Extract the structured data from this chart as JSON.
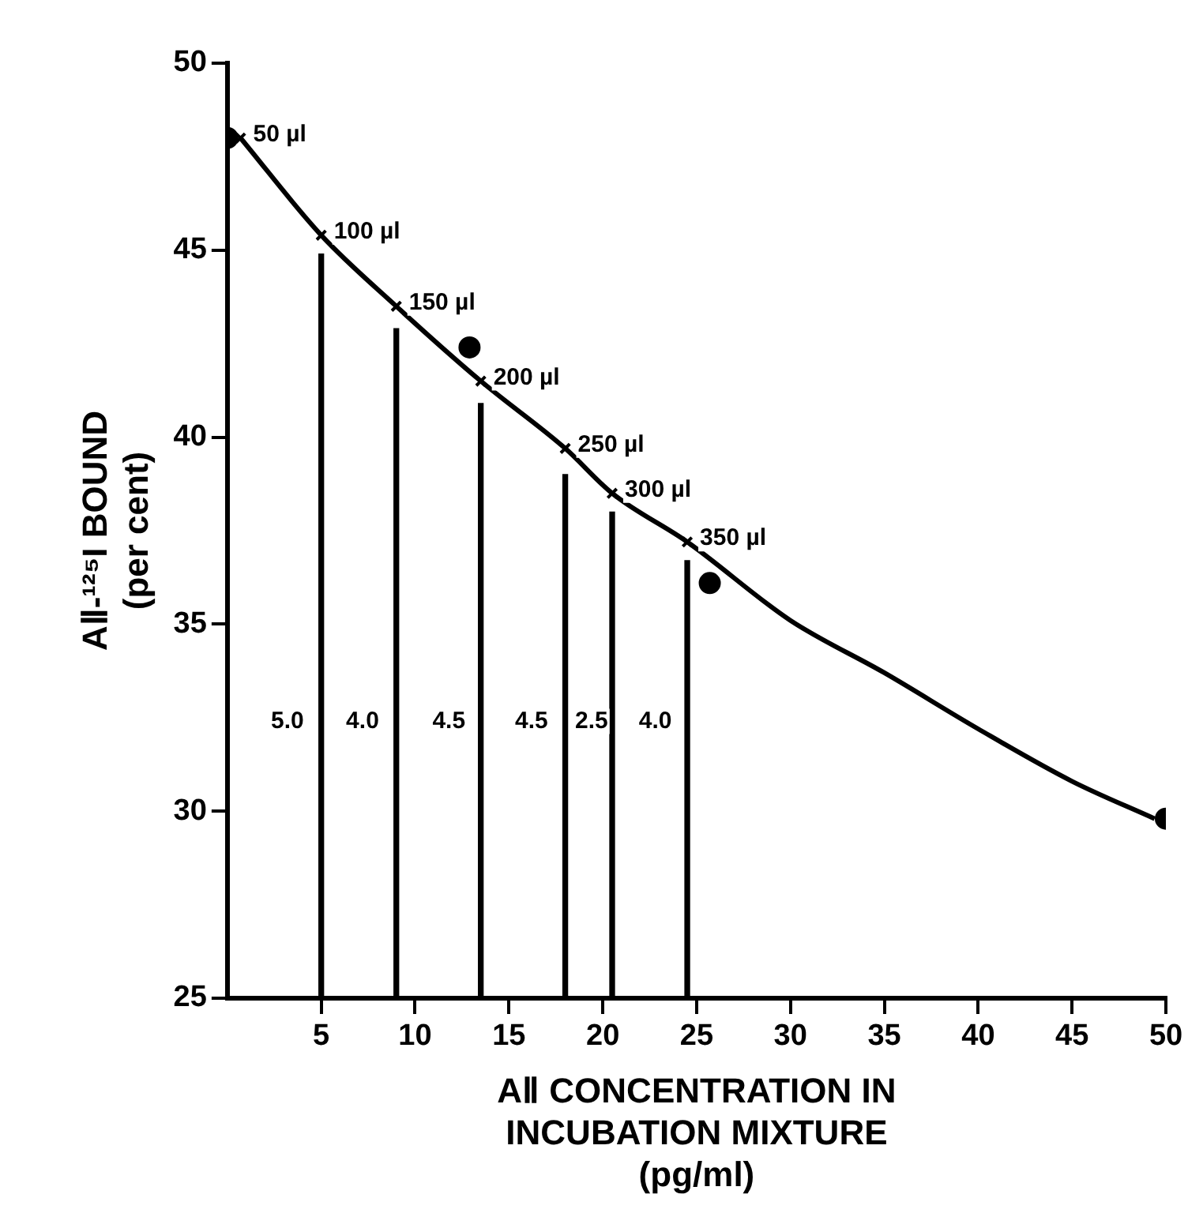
{
  "chart_data": {
    "type": "line",
    "xlabel": "AⅡ CONCENTRATION IN\nINCUBATION MIXTURE\n(pg/ml)",
    "ylabel": "AⅡ-¹²⁵I BOUND\n(per cent)",
    "xlim": [
      0,
      50
    ],
    "xticks": [
      5,
      10,
      15,
      20,
      25,
      30,
      35,
      40,
      45,
      50
    ],
    "ylim": [
      25,
      50
    ],
    "yticks": [
      25,
      30,
      35,
      40,
      45,
      50
    ],
    "grid": false,
    "legend": false,
    "series": [
      {
        "type": "bar",
        "color": "#000000",
        "x": [
          5,
          9,
          13.5,
          18,
          20.5,
          24.5
        ],
        "values": [
          44.9,
          42.9,
          40.9,
          39.0,
          38.0,
          36.7
        ]
      },
      {
        "color": "#000000",
        "marker": "none",
        "line_style": "solid",
        "x": [
          0.7,
          5,
          9,
          13.5,
          18,
          20.5,
          24.5,
          30,
          35,
          40,
          45,
          49.4
        ],
        "values": [
          48.0,
          45.4,
          43.5,
          41.5,
          39.7,
          38.5,
          37.2,
          35.1,
          33.7,
          32.2,
          30.8,
          29.8
        ]
      },
      {
        "type": "scatter",
        "color": "#000000",
        "marker": "cross",
        "x": [
          0.7,
          5,
          9,
          13.5,
          18,
          20.5,
          24.5
        ],
        "values": [
          48.0,
          45.4,
          43.5,
          41.5,
          39.7,
          38.5,
          37.2
        ]
      },
      {
        "type": "scatter",
        "color": "#000000",
        "marker": "circle",
        "x": [
          0,
          12.9,
          25.7,
          50
        ],
        "values": [
          48.0,
          42.4,
          36.1,
          29.8
        ]
      }
    ],
    "annotations": [
      {
        "text": "50 µl",
        "x": 0.7,
        "y": 48.0
      },
      {
        "text": "100 µl",
        "x": 5,
        "y": 45.4
      },
      {
        "text": "150 µl",
        "x": 9,
        "y": 43.5
      },
      {
        "text": "200 µl",
        "x": 13.5,
        "y": 41.5
      },
      {
        "text": "250 µl",
        "x": 18,
        "y": 39.7
      },
      {
        "text": "300 µl",
        "x": 20.5,
        "y": 38.5
      },
      {
        "text": "350 µl",
        "x": 24.5,
        "y": 37.2
      },
      {
        "text": "5.0",
        "x": 3.2,
        "y": 32.4
      },
      {
        "text": "4.0",
        "x": 7.2,
        "y": 32.4
      },
      {
        "text": "4.5",
        "x": 11.8,
        "y": 32.4
      },
      {
        "text": "4.5",
        "x": 16.2,
        "y": 32.4
      },
      {
        "text": "2.5",
        "x": 19.4,
        "y": 32.4
      },
      {
        "text": "4.0",
        "x": 22.8,
        "y": 32.4
      }
    ]
  }
}
